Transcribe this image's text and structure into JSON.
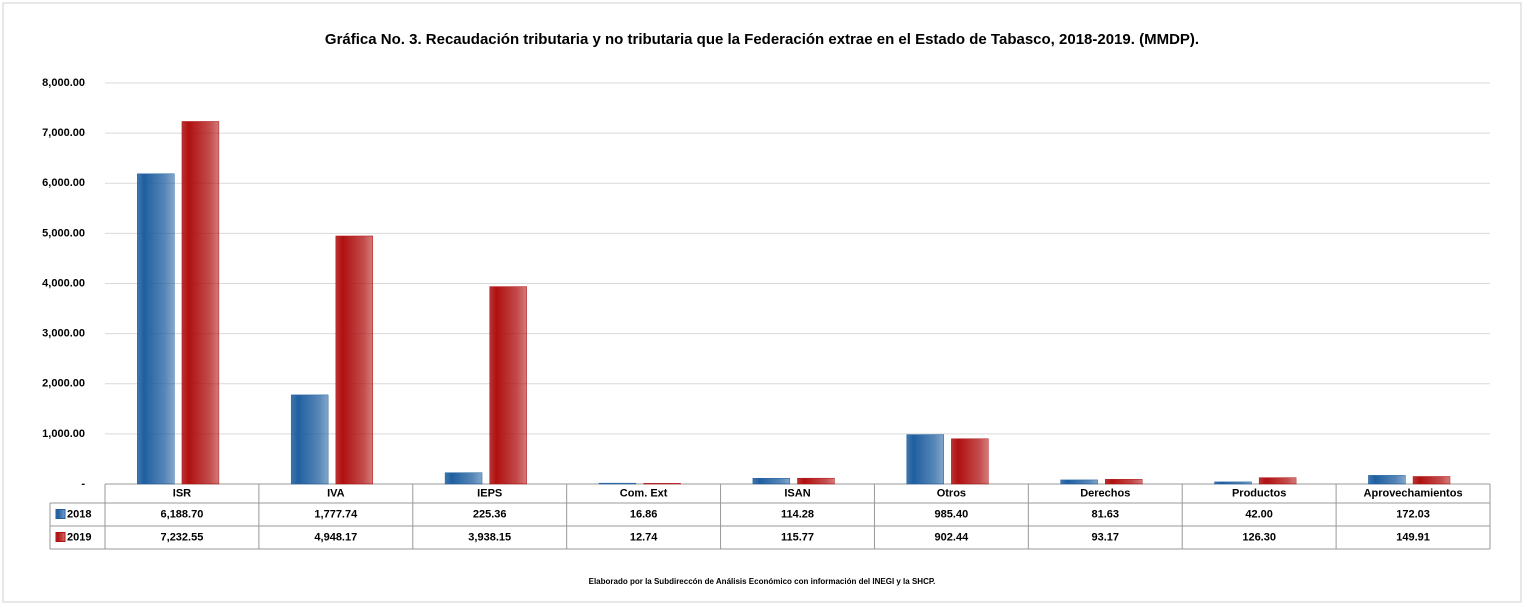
{
  "chart_data": {
    "type": "bar",
    "title": "Gráfica No. 3. Recaudación tributaria y no tributaria que la Federación extrae en el Estado de  Tabasco, 2018-2019. (MMDP).",
    "categories": [
      "ISR",
      "IVA",
      "IEPS",
      "Com. Ext",
      "ISAN",
      "Otros",
      "Derechos",
      "Productos",
      "Aprovechamientos"
    ],
    "series": [
      {
        "name": "2018",
        "color": "#1f5fa0",
        "values": [
          6188.7,
          1777.74,
          225.36,
          16.86,
          114.28,
          985.4,
          81.63,
          42.0,
          172.03
        ],
        "value_labels": [
          "6,188.70",
          "1,777.74",
          "225.36",
          "16.86",
          "114.28",
          "985.40",
          "81.63",
          "42.00",
          "172.03"
        ]
      },
      {
        "name": "2019",
        "color": "#b01010",
        "values": [
          7232.55,
          4948.17,
          3938.15,
          12.74,
          115.77,
          902.44,
          93.17,
          126.3,
          149.91
        ],
        "value_labels": [
          "7,232.55",
          "4,948.17",
          "3,938.15",
          "12.74",
          "115.77",
          "902.44",
          "93.17",
          "126.30",
          "149.91"
        ]
      }
    ],
    "ylim": [
      0,
      8000
    ],
    "yticks": [
      {
        "value": 0,
        "label": "-"
      },
      {
        "value": 1000,
        "label": "1,000.00"
      },
      {
        "value": 2000,
        "label": "2,000.00"
      },
      {
        "value": 3000,
        "label": "3,000.00"
      },
      {
        "value": 4000,
        "label": "4,000.00"
      },
      {
        "value": 5000,
        "label": "5,000.00"
      },
      {
        "value": 6000,
        "label": "6,000.00"
      },
      {
        "value": 7000,
        "label": "7,000.00"
      },
      {
        "value": 8000,
        "label": "8,000.00"
      }
    ],
    "grid": true,
    "footnote": "Elaborado por la Subdireccón de Análisis Económico con información del INEGI y la SHCP."
  }
}
